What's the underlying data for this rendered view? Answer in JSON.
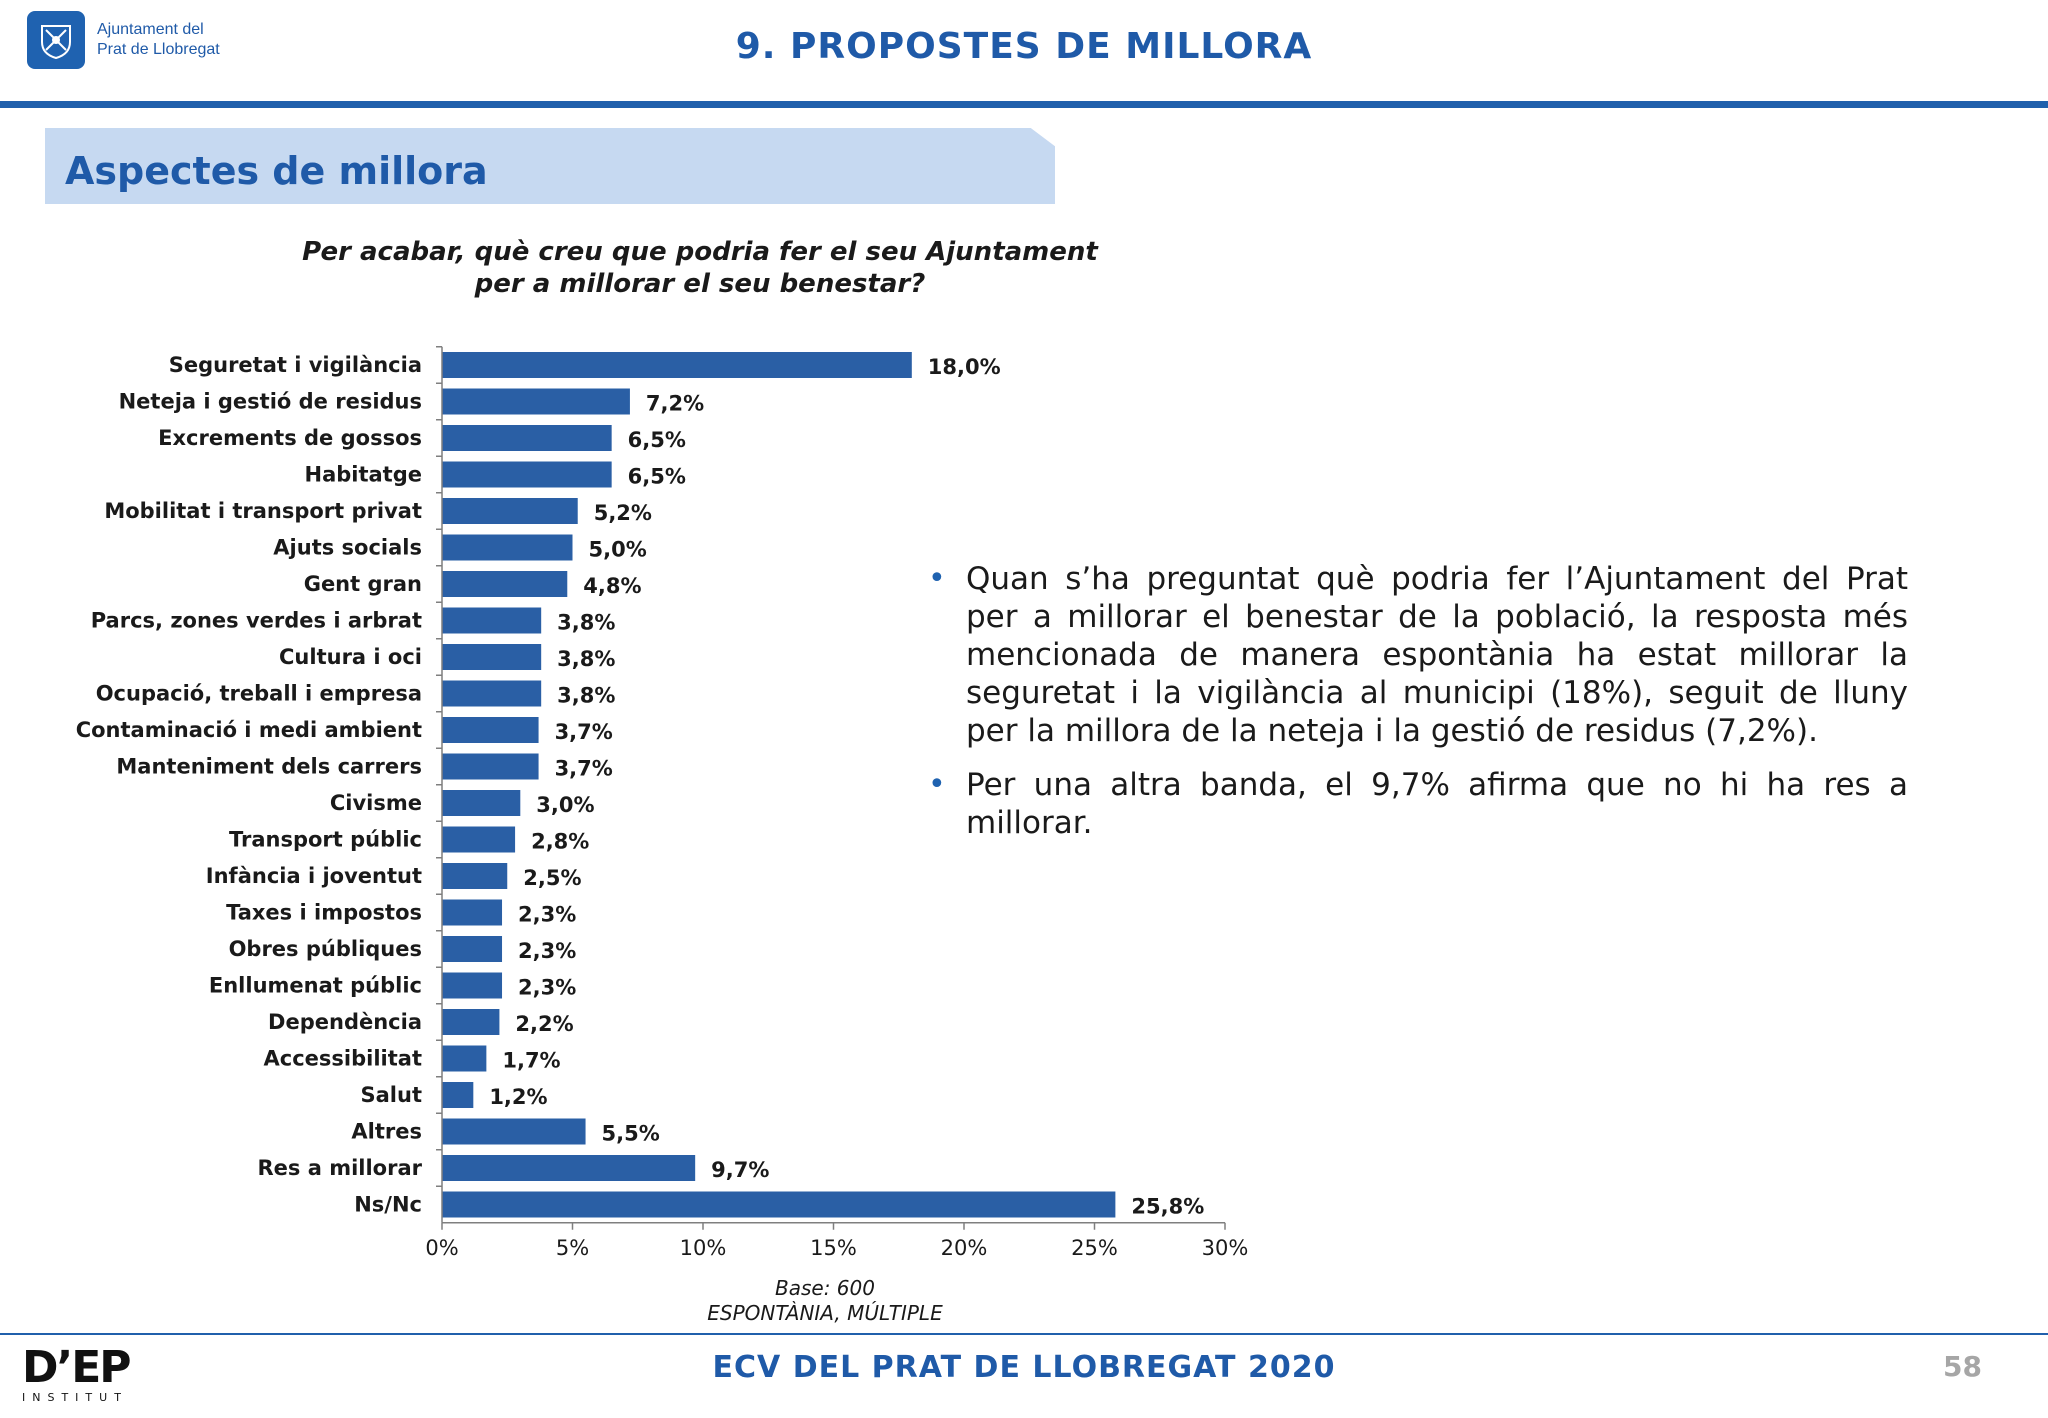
{
  "header": {
    "org_line1": "Ajuntament del",
    "org_line2": "Prat de Llobregat",
    "title": "9. PROPOSTES DE MILLORA"
  },
  "section": {
    "title": "Aspectes de millora"
  },
  "question": {
    "line1": "Per acabar, què creu que podria fer el seu Ajuntament",
    "line2": "per a millorar el seu benestar?"
  },
  "chart_data": {
    "type": "bar",
    "orientation": "horizontal",
    "categories": [
      "Seguretat i vigilància",
      "Neteja i gestió de residus",
      "Excrements de gossos",
      "Habitatge",
      "Mobilitat i transport privat",
      "Ajuts socials",
      "Gent gran",
      "Parcs, zones verdes i arbrat",
      "Cultura i oci",
      "Ocupació, treball i empresa",
      "Contaminació i medi ambient",
      "Manteniment dels carrers",
      "Civisme",
      "Transport públic",
      "Infància i joventut",
      "Taxes i impostos",
      "Obres públiques",
      "Enllumenat públic",
      "Dependència",
      "Accessibilitat",
      "Salut",
      "Altres",
      "Res a millorar",
      "Ns/Nc"
    ],
    "values": [
      18.0,
      7.2,
      6.5,
      6.5,
      5.2,
      5.0,
      4.8,
      3.8,
      3.8,
      3.8,
      3.7,
      3.7,
      3.0,
      2.8,
      2.5,
      2.3,
      2.3,
      2.3,
      2.2,
      1.7,
      1.2,
      5.5,
      9.7,
      25.8
    ],
    "value_labels": [
      "18,0%",
      "7,2%",
      "6,5%",
      "6,5%",
      "5,2%",
      "5,0%",
      "4,8%",
      "3,8%",
      "3,8%",
      "3,8%",
      "3,7%",
      "3,7%",
      "3,0%",
      "2,8%",
      "2,5%",
      "2,3%",
      "2,3%",
      "2,3%",
      "2,2%",
      "1,7%",
      "1,2%",
      "5,5%",
      "9,7%",
      "25,8%"
    ],
    "xlim": [
      0,
      30
    ],
    "x_ticks": [
      "0%",
      "5%",
      "10%",
      "15%",
      "20%",
      "25%",
      "30%"
    ],
    "bar_color": "#2a5fa5",
    "grid": false
  },
  "chart_notes": {
    "base": "Base: 600",
    "type": "ESPONTÀNIA, MÚLTIPLE"
  },
  "bullets": [
    "Quan s’ha preguntat què podria fer l’Ajuntament del Prat per a millorar el benestar de la població, la resposta més mencionada de manera espontània ha estat millorar la seguretat i la vigilància al municipi (18%), seguit de lluny per la millora de la neteja i la gestió de residus (7,2%).",
    "Per una altra banda, el 9,7% afirma que no hi ha res a millorar."
  ],
  "footer": {
    "logo_main": "D’EP",
    "logo_sub": "INSTITUT",
    "title": "ECV DEL PRAT DE LLOBREGAT 2020",
    "page_number": "58"
  },
  "colors": {
    "brand_blue": "#1f5aa8",
    "section_fill": "#c6d9f1",
    "bullet_blue": "#1f62b0"
  }
}
